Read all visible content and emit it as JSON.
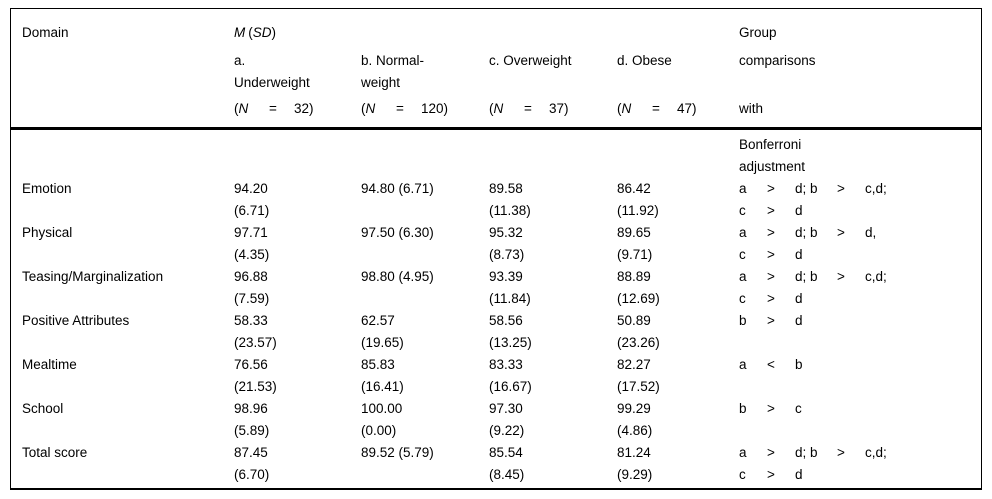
{
  "header": {
    "domain_label": "Domain",
    "msd": {
      "m": "M",
      "open": "(",
      "sd": "SD",
      "close": ")"
    },
    "group": {
      "line1": "Group",
      "line2": "comparisons",
      "line3": "with",
      "line4": "Bonferroni",
      "line5": "adjustment"
    },
    "n_open": "(",
    "n_var": "N",
    "n_eq": "=",
    "cols": [
      {
        "line1": "a.",
        "line2": "Underweight",
        "n_close": "32)"
      },
      {
        "line1": "b. Normal-",
        "line2": "weight",
        "n_close": "120)"
      },
      {
        "line1": "c. Overweight",
        "line2": "",
        "n_close": "37)"
      },
      {
        "line1": "d. Obese",
        "line2": "",
        "n_close": "47)"
      }
    ]
  },
  "rows": [
    {
      "domain": "Emotion",
      "a": [
        "94.20",
        "(6.71)"
      ],
      "b": [
        "94.80 (6.71)",
        ""
      ],
      "c": [
        "89.58",
        "(11.38)"
      ],
      "d": [
        "86.42",
        "(11.92)"
      ],
      "comp": [
        [
          "a",
          ">",
          "d; b",
          ">",
          "c,d;"
        ],
        [
          "c",
          ">",
          "d"
        ]
      ]
    },
    {
      "domain": "Physical",
      "a": [
        "97.71",
        "(4.35)"
      ],
      "b": [
        "97.50 (6.30)",
        ""
      ],
      "c": [
        "95.32",
        "(8.73)"
      ],
      "d": [
        "89.65",
        "(9.71)"
      ],
      "comp": [
        [
          "a",
          ">",
          "d; b",
          ">",
          "d,"
        ],
        [
          "c",
          ">",
          "d"
        ]
      ]
    },
    {
      "domain": "Teasing/Marginalization",
      "a": [
        "96.88",
        "(7.59)"
      ],
      "b": [
        "98.80 (4.95)",
        ""
      ],
      "c": [
        "93.39",
        "(11.84)"
      ],
      "d": [
        "88.89",
        "(12.69)"
      ],
      "comp": [
        [
          "a",
          ">",
          "d; b",
          ">",
          "c,d;"
        ],
        [
          "c",
          ">",
          "d"
        ]
      ]
    },
    {
      "domain": "Positive Attributes",
      "a": [
        "58.33",
        "(23.57)"
      ],
      "b": [
        "62.57",
        "(19.65)"
      ],
      "c": [
        "58.56",
        "(13.25)"
      ],
      "d": [
        "50.89",
        "(23.26)"
      ],
      "comp": [
        [
          "b",
          ">",
          "d"
        ]
      ]
    },
    {
      "domain": "Mealtime",
      "a": [
        "76.56",
        "(21.53)"
      ],
      "b": [
        "85.83",
        "(16.41)"
      ],
      "c": [
        "83.33",
        "(16.67)"
      ],
      "d": [
        "82.27",
        "(17.52)"
      ],
      "comp": [
        [
          "a",
          "<",
          "b"
        ]
      ]
    },
    {
      "domain": "School",
      "a": [
        "98.96",
        "(5.89)"
      ],
      "b": [
        "100.00",
        "(0.00)"
      ],
      "c": [
        "97.30",
        "(9.22)"
      ],
      "d": [
        "99.29",
        "(4.86)"
      ],
      "comp": [
        [
          "b",
          ">",
          "c"
        ]
      ]
    },
    {
      "domain": "Total score",
      "a": [
        "87.45",
        "(6.70)"
      ],
      "b": [
        "89.52 (5.79)",
        ""
      ],
      "c": [
        "85.54",
        "(8.45)"
      ],
      "d": [
        "81.24",
        "(9.29)"
      ],
      "comp": [
        [
          "a",
          ">",
          "d; b",
          ">",
          "c,d;"
        ],
        [
          "c",
          ">",
          "d"
        ]
      ]
    }
  ]
}
